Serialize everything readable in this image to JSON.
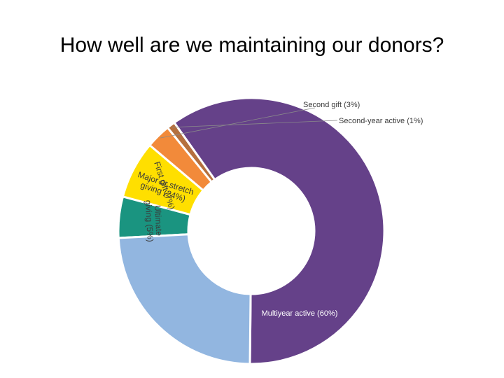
{
  "slide": {
    "title": "How well are we maintaining our donors?"
  },
  "chart_data": {
    "type": "pie",
    "subtype": "donut",
    "title": "How well are we maintaining our donors?",
    "categories": [
      "Ultimate giving",
      "First gift",
      "Second gift",
      "Second-year active",
      "Multiyear active",
      "Major or stretch giving"
    ],
    "slices": [
      {
        "name": "Ultimate giving",
        "value": 5,
        "label": "Ultimate giving (5%)",
        "label_lines": [
          "Ultimate",
          "giving (5%)"
        ],
        "color": "#1a9480"
      },
      {
        "name": "First gift",
        "value": 7,
        "label": "First gift (7%)",
        "label_lines": [
          "First gift (7%)"
        ],
        "color": "#ffdf00"
      },
      {
        "name": "Second gift",
        "value": 3,
        "label": "Second gift (3%)",
        "label_lines": [
          "Second gift (3%)"
        ],
        "color": "#f28a3a"
      },
      {
        "name": "Second-year active",
        "value": 1,
        "label": "Second-year active (1%)",
        "label_lines": [
          "Second-year active (1%)"
        ],
        "color": "#b5703e"
      },
      {
        "name": "Multiyear active",
        "value": 60,
        "label": "Multiyear active (60%)",
        "label_lines": [
          "Multiyear active (60%)"
        ],
        "color": "#654189"
      },
      {
        "name": "Major or stretch giving",
        "value": 24,
        "label": "Major or stretch giving (24%)",
        "label_lines": [
          "Major or stretch",
          "giving (24%)"
        ],
        "color": "#92b6e0"
      }
    ],
    "values": [
      5,
      7,
      3,
      1,
      60,
      24
    ],
    "unit": "%",
    "legend": "none"
  }
}
